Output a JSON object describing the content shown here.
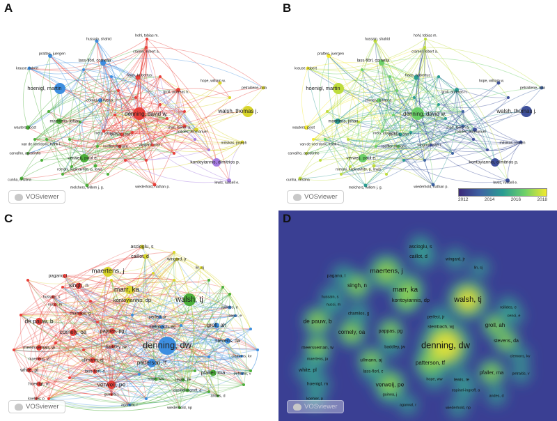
{
  "panels": {
    "A": {
      "label": "A"
    },
    "B": {
      "label": "B"
    },
    "C": {
      "label": "C"
    },
    "D": {
      "label": "D"
    }
  },
  "logo_text": "VOSviewer",
  "colorbar": {
    "ticks": [
      "2012",
      "2014",
      "2016",
      "2018"
    ]
  },
  "colors": {
    "red": "#e8403a",
    "green": "#4caf3a",
    "blue": "#3d8ee0",
    "yellow": "#d9d52a",
    "purple": "#a47ae0",
    "lightblue": "#46b5dc",
    "density_bg": "#3a3f93"
  },
  "chart_data": [
    {
      "type": "network",
      "panel": "A",
      "nodes": [
        {
          "label": "hussain, shahid",
          "cluster": "blue"
        },
        {
          "label": "hohl, tobias m.",
          "cluster": "red"
        },
        {
          "label": "cramer, robert a.",
          "cluster": "red"
        },
        {
          "label": "prattes, juergen",
          "cluster": "blue"
        },
        {
          "label": "lass-flörl, cornelia",
          "cluster": "blue"
        },
        {
          "label": "krause, robert",
          "cluster": "blue"
        },
        {
          "label": "haas, hubertus",
          "cluster": "red"
        },
        {
          "label": "hoenigl, martin",
          "cluster": "blue"
        },
        {
          "label": "hope, william w.",
          "cluster": "yellow"
        },
        {
          "label": "petraitiene, ruta",
          "cluster": "yellow"
        },
        {
          "label": "groll, andreas h.",
          "cluster": "red"
        },
        {
          "label": "cornely, oliver a.",
          "cluster": "blue"
        },
        {
          "label": "denning, david w.",
          "cluster": "red"
        },
        {
          "label": "walsh, thomas j.",
          "cluster": "yellow"
        },
        {
          "label": "maertens, johan",
          "cluster": "green"
        },
        {
          "label": "meis, jacques f.",
          "cluster": "red"
        },
        {
          "label": "marr, kieren a.",
          "cluster": "red"
        },
        {
          "label": "perfect, john r.",
          "cluster": "red"
        },
        {
          "label": "wauters, joost",
          "cluster": "green"
        },
        {
          "label": "roilides, emmanuel",
          "cluster": "yellow"
        },
        {
          "label": "van de veerdonk, frank l.",
          "cluster": "green"
        },
        {
          "label": "loeffler, juergen",
          "cluster": "red"
        },
        {
          "label": "wingard, john r.",
          "cluster": "red"
        },
        {
          "label": "mitsikas, joseph",
          "cluster": "yellow"
        },
        {
          "label": "carvalho, agostinho",
          "cluster": "green"
        },
        {
          "label": "verweij, paul e.",
          "cluster": "green"
        },
        {
          "label": "kontoyiannis, dimitrios p.",
          "cluster": "purple"
        },
        {
          "label": "romani, luigina",
          "cluster": "green"
        },
        {
          "label": "white, p. lewis",
          "cluster": "green"
        },
        {
          "label": "cunha, cristina",
          "cluster": "green"
        },
        {
          "label": "lewis, russell e.",
          "cluster": "purple"
        },
        {
          "label": "melchers, willem j. g.",
          "cluster": "green"
        },
        {
          "label": "wiederhold, nathan p.",
          "cluster": "red"
        }
      ]
    },
    {
      "type": "network-overlay",
      "panel": "B",
      "color_scale_years": [
        2012,
        2018
      ],
      "nodes": [
        {
          "label": "hussain, shahid",
          "year": 2017
        },
        {
          "label": "hohl, tobias m.",
          "year": 2017
        },
        {
          "label": "cramer, robert a.",
          "year": 2017
        },
        {
          "label": "prattes, juergen",
          "year": 2018
        },
        {
          "label": "lass-flörl, cornelia",
          "year": 2016
        },
        {
          "label": "krause, robert",
          "year": 2018
        },
        {
          "label": "haas, hubertus",
          "year": 2015
        },
        {
          "label": "hoenigl, martin",
          "year": 2017
        },
        {
          "label": "hope, william w.",
          "year": 2013
        },
        {
          "label": "petraitiene, ruta",
          "year": 2014
        },
        {
          "label": "groll, andreas h.",
          "year": 2015
        },
        {
          "label": "cornely, oliver a.",
          "year": 2016
        },
        {
          "label": "denning, david w.",
          "year": 2016
        },
        {
          "label": "walsh, thomas j.",
          "year": 2013
        },
        {
          "label": "maertens, johan",
          "year": 2015
        },
        {
          "label": "meis, jacques f.",
          "year": 2016
        },
        {
          "label": "marr, kieren a.",
          "year": 2014
        },
        {
          "label": "perfect, john r.",
          "year": 2015
        },
        {
          "label": "wauters, joost",
          "year": 2018
        },
        {
          "label": "roilides, emmanuel",
          "year": 2013
        },
        {
          "label": "van de veerdonk, frank l.",
          "year": 2016
        },
        {
          "label": "loeffler, juergen",
          "year": 2016
        },
        {
          "label": "wingard, john r.",
          "year": 2013
        },
        {
          "label": "mitsikas, joseph",
          "year": 2013
        },
        {
          "label": "carvalho, agostinho",
          "year": 2017
        },
        {
          "label": "verweij, paul e.",
          "year": 2016
        },
        {
          "label": "kontoyiannis, dimitrios p.",
          "year": 2013
        },
        {
          "label": "romani, luigina",
          "year": 2017
        },
        {
          "label": "white, p. lewis",
          "year": 2017
        },
        {
          "label": "cunha, cristina",
          "year": 2017
        },
        {
          "label": "lewis, russell e.",
          "year": 2013
        },
        {
          "label": "melchers, willem j. g.",
          "year": 2015
        },
        {
          "label": "wiederhold, nathan p.",
          "year": 2014
        }
      ]
    },
    {
      "type": "network",
      "panel": "C",
      "nodes": [
        {
          "label": "ascioglu, s",
          "cluster": "yellow"
        },
        {
          "label": "caillot, d",
          "cluster": "yellow"
        },
        {
          "label": "wingard, jr",
          "cluster": "yellow"
        },
        {
          "label": "lin, sj",
          "cluster": "yellow"
        },
        {
          "label": "maertens, j",
          "cluster": "yellow"
        },
        {
          "label": "pagano, l",
          "cluster": "red"
        },
        {
          "label": "singh, n",
          "cluster": "red"
        },
        {
          "label": "marr, ka",
          "cluster": "yellow"
        },
        {
          "label": "kontoyiannis, dp",
          "cluster": "yellow"
        },
        {
          "label": "walsh, tj",
          "cluster": "green"
        },
        {
          "label": "hussain, s",
          "cluster": "red"
        },
        {
          "label": "nucci, m",
          "cluster": "red"
        },
        {
          "label": "roilides, e",
          "cluster": "blue"
        },
        {
          "label": "cenci, e",
          "cluster": "blue"
        },
        {
          "label": "chamilos, g",
          "cluster": "red"
        },
        {
          "label": "perfect, jr",
          "cluster": "blue"
        },
        {
          "label": "de pauw, b",
          "cluster": "red"
        },
        {
          "label": "steinbach, wj",
          "cluster": "blue"
        },
        {
          "label": "groll, ah",
          "cluster": "blue"
        },
        {
          "label": "cornely, oa",
          "cluster": "red"
        },
        {
          "label": "pappas, pg",
          "cluster": "red"
        },
        {
          "label": "stevens, da",
          "cluster": "blue"
        },
        {
          "label": "denning, dw",
          "cluster": "blue"
        },
        {
          "label": "baddley, jw",
          "cluster": "red"
        },
        {
          "label": "meersseman, w",
          "cluster": "red"
        },
        {
          "label": "clemons, kv",
          "cluster": "blue"
        },
        {
          "label": "maertens, ja",
          "cluster": "red"
        },
        {
          "label": "ullmann, aj",
          "cluster": "red"
        },
        {
          "label": "patterson, tf",
          "cluster": "blue"
        },
        {
          "label": "white, pl",
          "cluster": "red"
        },
        {
          "label": "lass-florl, c",
          "cluster": "red"
        },
        {
          "label": "pfaller, ma",
          "cluster": "green"
        },
        {
          "label": "petraitis, v",
          "cluster": "blue"
        },
        {
          "label": "hoenigl, m",
          "cluster": "red"
        },
        {
          "label": "hope, ww",
          "cluster": "green"
        },
        {
          "label": "verweij, pe",
          "cluster": "red"
        },
        {
          "label": "lewis, re",
          "cluster": "green"
        },
        {
          "label": "guinea, j",
          "cluster": "red"
        },
        {
          "label": "espinel-ingroff, a",
          "cluster": "green"
        },
        {
          "label": "andes, d",
          "cluster": "green"
        },
        {
          "label": "koehler, p",
          "cluster": "red"
        },
        {
          "label": "agarwal, r",
          "cluster": "blue"
        },
        {
          "label": "wiederhold, np",
          "cluster": "green"
        }
      ]
    },
    {
      "type": "density",
      "panel": "D",
      "labels": [
        "ascioglu, s",
        "caillot, d",
        "wingard, jr",
        "lin, sj",
        "maertens, j",
        "pagano, l",
        "singh, n",
        "marr, ka",
        "kontoyiannis, dp",
        "walsh, tj",
        "hussain, s",
        "nucci, m",
        "roilides, e",
        "cenci, e",
        "chamilos, g",
        "perfect, jr",
        "de pauw, b",
        "steinbach, wj",
        "groll, ah",
        "cornely, oa",
        "pappas, pg",
        "stevens, da",
        "denning, dw",
        "baddley, jw",
        "meersseman, w",
        "clemons, kv",
        "maertens, ja",
        "ullmann, aj",
        "patterson, tf",
        "white, pl",
        "lass-florl, c",
        "pfaller, ma",
        "petraitis, v",
        "hoenigl, m",
        "hope, ww",
        "verweij, pe",
        "lewis, re",
        "guinea, j",
        "espinel-ingroff, a",
        "andes, d",
        "koehler, p",
        "agarwal, r",
        "wiederhold, np"
      ]
    }
  ]
}
